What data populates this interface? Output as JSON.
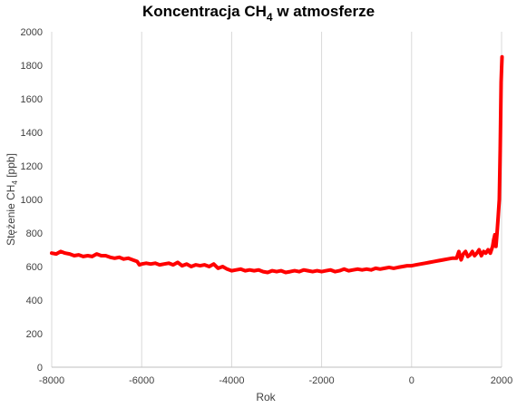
{
  "chart_data": {
    "type": "line",
    "title": "Koncentracja CH4 w atmosferze",
    "title_main": "Koncentracja CH",
    "title_sub": "4",
    "title_tail": " w atmosferze",
    "xlabel": "Rok",
    "ylabel": "Stężenie CH4 [ppb]",
    "ylabel_main": "Stężenie CH",
    "ylabel_sub": "4",
    "ylabel_tail": " [ppb]",
    "xlim": [
      -8000,
      2000
    ],
    "ylim": [
      0,
      2000
    ],
    "x_ticks": [
      -8000,
      -6000,
      -4000,
      -2000,
      0,
      2000
    ],
    "y_ticks": [
      0,
      200,
      400,
      600,
      800,
      1000,
      1200,
      1400,
      1600,
      1800,
      2000
    ],
    "x_tick_labels": [
      "-8000",
      "-6000",
      "-4000",
      "-2000",
      "0",
      "2000"
    ],
    "y_tick_labels": [
      "0",
      "200",
      "400",
      "600",
      "800",
      "1000",
      "1200",
      "1400",
      "1600",
      "1800",
      "2000"
    ],
    "grid": {
      "vertical": true,
      "horizontal": false
    },
    "legend": "none",
    "series": [
      {
        "color": "#ff0000",
        "x": [
          -8000,
          -7900,
          -7800,
          -7700,
          -7600,
          -7500,
          -7400,
          -7300,
          -7200,
          -7100,
          -7000,
          -6900,
          -6800,
          -6700,
          -6600,
          -6500,
          -6400,
          -6300,
          -6200,
          -6100,
          -6050,
          -6000,
          -5900,
          -5800,
          -5700,
          -5600,
          -5500,
          -5400,
          -5300,
          -5200,
          -5100,
          -5000,
          -4900,
          -4800,
          -4700,
          -4600,
          -4500,
          -4400,
          -4300,
          -4200,
          -4100,
          -4000,
          -3900,
          -3800,
          -3700,
          -3600,
          -3500,
          -3400,
          -3300,
          -3200,
          -3100,
          -3000,
          -2900,
          -2800,
          -2700,
          -2600,
          -2500,
          -2400,
          -2300,
          -2200,
          -2100,
          -2000,
          -1900,
          -1800,
          -1700,
          -1600,
          -1500,
          -1400,
          -1300,
          -1200,
          -1100,
          -1000,
          -900,
          -800,
          -700,
          -600,
          -500,
          -400,
          -300,
          -200,
          -100,
          0,
          100,
          200,
          300,
          400,
          500,
          600,
          700,
          800,
          900,
          1000,
          1050,
          1100,
          1150,
          1200,
          1250,
          1300,
          1350,
          1400,
          1450,
          1500,
          1550,
          1600,
          1650,
          1700,
          1750,
          1800,
          1825,
          1850,
          1875,
          1900,
          1925,
          1950,
          1960,
          1970,
          1980,
          1990,
          2000,
          2010
        ],
        "y": [
          680,
          675,
          690,
          680,
          675,
          665,
          670,
          660,
          665,
          660,
          675,
          665,
          665,
          655,
          650,
          655,
          645,
          650,
          640,
          630,
          610,
          615,
          620,
          615,
          620,
          610,
          615,
          620,
          610,
          625,
          605,
          615,
          600,
          610,
          605,
          610,
          600,
          615,
          590,
          600,
          585,
          575,
          580,
          585,
          575,
          580,
          575,
          580,
          570,
          565,
          575,
          570,
          575,
          565,
          570,
          575,
          570,
          580,
          575,
          570,
          575,
          570,
          575,
          580,
          570,
          575,
          585,
          575,
          580,
          585,
          580,
          585,
          580,
          590,
          585,
          590,
          595,
          590,
          595,
          600,
          605,
          605,
          610,
          615,
          620,
          625,
          630,
          635,
          640,
          645,
          650,
          650,
          690,
          640,
          675,
          690,
          660,
          670,
          690,
          665,
          680,
          700,
          665,
          690,
          680,
          700,
          680,
          720,
          760,
          790,
          720,
          800,
          900,
          1000,
          1150,
          1300,
          1500,
          1700,
          1780,
          1850
        ]
      }
    ]
  }
}
